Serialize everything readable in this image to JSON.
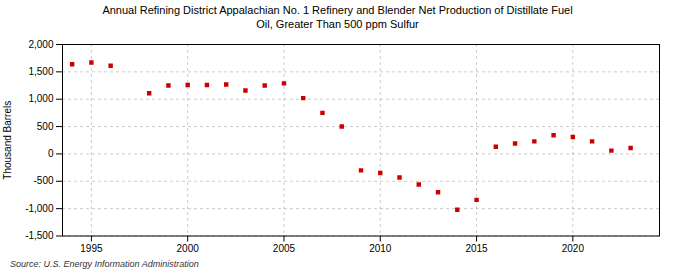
{
  "chart_data": {
    "type": "scatter",
    "title": "Annual Refining District Appalachian No. 1 Refinery and Blender Net Production of Distillate Fuel\nOil, Greater Than 500 ppm Sulfur",
    "ylabel": "Thousand Barrels",
    "source": "Source: U.S. Energy Information Administration",
    "x": [
      1994,
      1995,
      1996,
      1998,
      1999,
      2000,
      2001,
      2002,
      2003,
      2004,
      2005,
      2006,
      2007,
      2008,
      2009,
      2010,
      2011,
      2012,
      2013,
      2014,
      2015,
      2016,
      2017,
      2018,
      2019,
      2020,
      2021,
      2022,
      2023
    ],
    "values": [
      1640,
      1670,
      1610,
      1110,
      1250,
      1260,
      1260,
      1270,
      1160,
      1250,
      1290,
      1020,
      750,
      500,
      -300,
      -350,
      -430,
      -560,
      -700,
      -1020,
      -840,
      130,
      190,
      230,
      340,
      310,
      230,
      60,
      110
    ],
    "color": "#cc0000",
    "marker": "square",
    "xlim": [
      1993.5,
      2024.5
    ],
    "xticks": [
      1995,
      2000,
      2005,
      2010,
      2015,
      2020
    ],
    "ylim": [
      -1500,
      2000
    ],
    "yticks": [
      {
        "value": -1500,
        "label": "-1,500"
      },
      {
        "value": -1000,
        "label": "-1,000"
      },
      -500,
      0,
      500,
      {
        "value": 1000,
        "label": "1,000"
      },
      {
        "value": 1500,
        "label": "1,500"
      },
      {
        "value": 2000,
        "label": "2,000"
      }
    ],
    "grid": true
  }
}
